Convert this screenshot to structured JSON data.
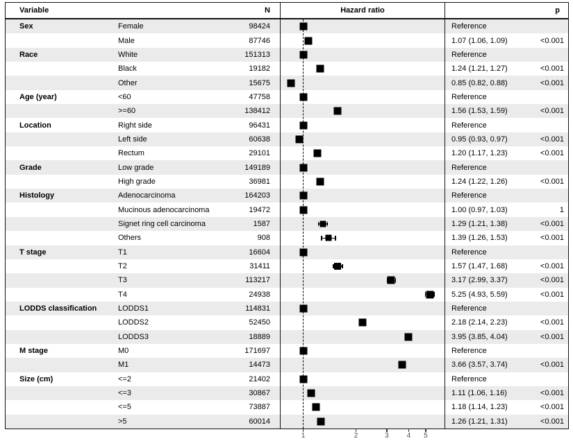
{
  "header": {
    "variable": "Variable",
    "n": "N",
    "hazard_ratio": "Hazard ratio",
    "p": "p"
  },
  "colors": {
    "stripe": "#ebebeb",
    "marker": "#000000",
    "border": "#111111",
    "tick_label": "#4d4d4d"
  },
  "chart_data": {
    "type": "forest",
    "x_scale": "log",
    "xlim": [
      0.75,
      6.4
    ],
    "x_ticks": [
      1,
      2,
      3,
      4,
      5
    ],
    "reference_line": 1,
    "xlabel": "Hazard ratio",
    "rows": [
      {
        "group": "Sex",
        "level": "Female",
        "n": "98424",
        "hr": 1.0,
        "hr_text": "Reference",
        "p": ""
      },
      {
        "group": "",
        "level": "Male",
        "n": "87746",
        "hr": 1.07,
        "lo": 1.06,
        "hi": 1.09,
        "hr_text": "1.07 (1.06, 1.09)",
        "p": "<0.001"
      },
      {
        "group": "Race",
        "level": "White",
        "n": "151313",
        "hr": 1.0,
        "hr_text": "Reference",
        "p": ""
      },
      {
        "group": "",
        "level": "Black",
        "n": "19182",
        "hr": 1.24,
        "lo": 1.21,
        "hi": 1.27,
        "hr_text": "1.24 (1.21, 1.27)",
        "p": "<0.001"
      },
      {
        "group": "",
        "level": "Other",
        "n": "15675",
        "hr": 0.85,
        "lo": 0.82,
        "hi": 0.88,
        "hr_text": "0.85 (0.82, 0.88)",
        "p": "<0.001"
      },
      {
        "group": "Age (year)",
        "level": "<60",
        "n": "47758",
        "hr": 1.0,
        "hr_text": "Reference",
        "p": ""
      },
      {
        "group": "",
        "level": ">=60",
        "n": "138412",
        "hr": 1.56,
        "lo": 1.53,
        "hi": 1.59,
        "hr_text": "1.56 (1.53, 1.59)",
        "p": "<0.001"
      },
      {
        "group": "Location",
        "level": "Right side",
        "n": "96431",
        "hr": 1.0,
        "hr_text": "Reference",
        "p": ""
      },
      {
        "group": "",
        "level": "Left side",
        "n": "60638",
        "hr": 0.95,
        "lo": 0.93,
        "hi": 0.97,
        "hr_text": "0.95 (0.93, 0.97)",
        "p": "<0.001"
      },
      {
        "group": "",
        "level": "Rectum",
        "n": "29101",
        "hr": 1.2,
        "lo": 1.17,
        "hi": 1.23,
        "hr_text": "1.20 (1.17, 1.23)",
        "p": "<0.001"
      },
      {
        "group": "Grade",
        "level": "Low grade",
        "n": "149189",
        "hr": 1.0,
        "hr_text": "Reference",
        "p": ""
      },
      {
        "group": "",
        "level": "High grade",
        "n": "36981",
        "hr": 1.24,
        "lo": 1.22,
        "hi": 1.26,
        "hr_text": "1.24 (1.22, 1.26)",
        "p": "<0.001"
      },
      {
        "group": "Histology",
        "level": "Adenocarcinoma",
        "n": "164203",
        "hr": 1.0,
        "hr_text": "Reference",
        "p": ""
      },
      {
        "group": "",
        "level": "Mucinous adenocarcinoma",
        "n": "19472",
        "hr": 1.0,
        "lo": 0.97,
        "hi": 1.03,
        "hr_text": "1.00 (0.97, 1.03)",
        "p": "1"
      },
      {
        "group": "",
        "level": "Signet ring cell carcinoma",
        "n": "1587",
        "hr": 1.29,
        "lo": 1.21,
        "hi": 1.38,
        "ms": 9,
        "hr_text": "1.29 (1.21, 1.38)",
        "p": "<0.001"
      },
      {
        "group": "",
        "level": "Others",
        "n": "908",
        "hr": 1.39,
        "lo": 1.26,
        "hi": 1.53,
        "ms": 9,
        "hr_text": "1.39 (1.26, 1.53)",
        "p": "<0.001"
      },
      {
        "group": "T stage",
        "level": "T1",
        "n": "16604",
        "hr": 1.0,
        "hr_text": "Reference",
        "p": ""
      },
      {
        "group": "",
        "level": "T2",
        "n": "31411",
        "hr": 1.57,
        "lo": 1.47,
        "hi": 1.68,
        "ms": 10,
        "hr_text": "1.57 (1.47, 1.68)",
        "p": "<0.001"
      },
      {
        "group": "",
        "level": "T3",
        "n": "113217",
        "hr": 3.17,
        "lo": 2.99,
        "hi": 3.37,
        "hr_text": "3.17 (2.99, 3.37)",
        "p": "<0.001"
      },
      {
        "group": "",
        "level": "T4",
        "n": "24938",
        "hr": 5.25,
        "lo": 4.93,
        "hi": 5.59,
        "hr_text": "5.25 (4.93, 5.59)",
        "p": "<0.001"
      },
      {
        "group": "LODDS classification",
        "level": "LODDS1",
        "n": "114831",
        "hr": 1.0,
        "hr_text": "Reference",
        "p": ""
      },
      {
        "group": "",
        "level": "LODDS2",
        "n": "52450",
        "hr": 2.18,
        "lo": 2.14,
        "hi": 2.23,
        "hr_text": "2.18 (2.14, 2.23)",
        "p": "<0.001"
      },
      {
        "group": "",
        "level": "LODDS3",
        "n": "18889",
        "hr": 3.95,
        "lo": 3.85,
        "hi": 4.04,
        "hr_text": "3.95 (3.85, 4.04)",
        "p": "<0.001"
      },
      {
        "group": "M stage",
        "level": "M0",
        "n": "171697",
        "hr": 1.0,
        "hr_text": "Reference",
        "p": ""
      },
      {
        "group": "",
        "level": "M1",
        "n": "14473",
        "hr": 3.66,
        "lo": 3.57,
        "hi": 3.74,
        "hr_text": "3.66 (3.57, 3.74)",
        "p": "<0.001"
      },
      {
        "group": "Size (cm)",
        "level": "<=2",
        "n": "21402",
        "hr": 1.0,
        "hr_text": "Reference",
        "p": ""
      },
      {
        "group": "",
        "level": "<=3",
        "n": "30867",
        "hr": 1.11,
        "lo": 1.06,
        "hi": 1.16,
        "hr_text": "1.11 (1.06, 1.16)",
        "p": "<0.001"
      },
      {
        "group": "",
        "level": "<=5",
        "n": "73887",
        "hr": 1.18,
        "lo": 1.14,
        "hi": 1.23,
        "hr_text": "1.18 (1.14, 1.23)",
        "p": "<0.001"
      },
      {
        "group": "",
        "level": ">5",
        "n": "60014",
        "hr": 1.26,
        "lo": 1.21,
        "hi": 1.31,
        "hr_text": "1.26 (1.21, 1.31)",
        "p": "<0.001"
      }
    ]
  }
}
